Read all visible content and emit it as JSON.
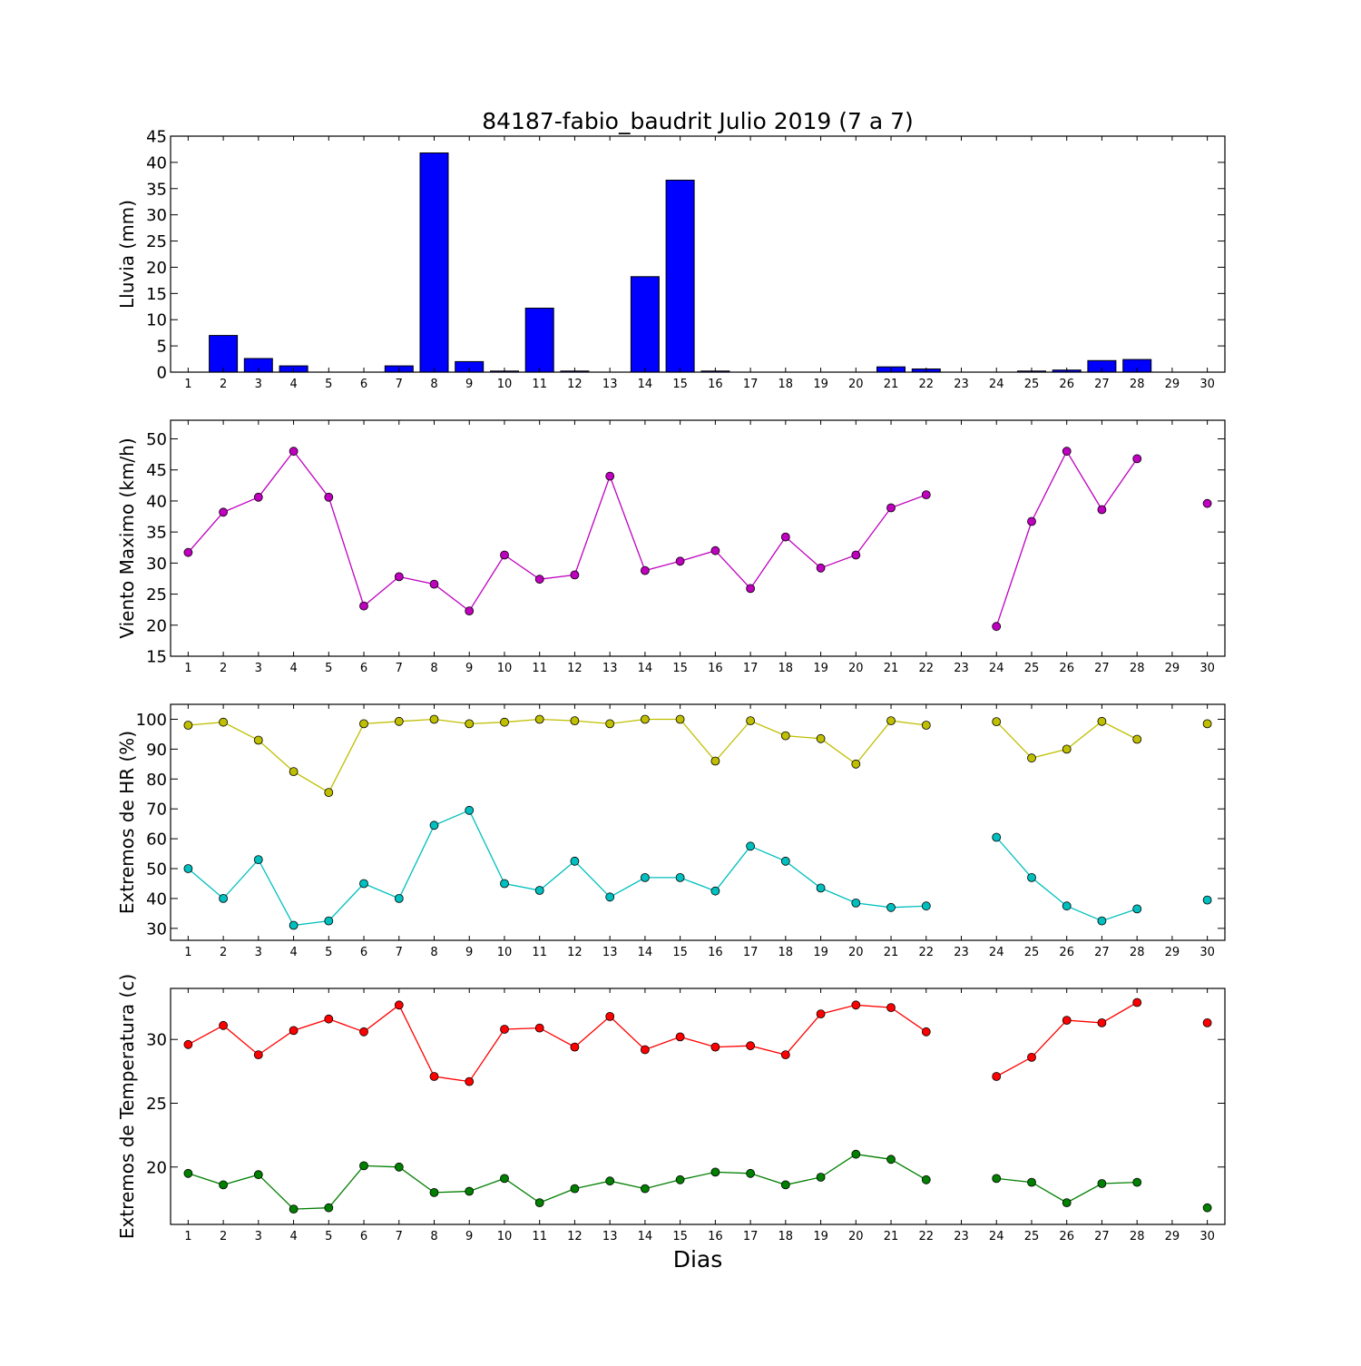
{
  "chart_data": [
    {
      "type": "bar",
      "title": "84187-fabio_baudrit Julio 2019  (7 a 7)",
      "ylabel": "Lluvia (mm)",
      "xlabel": "",
      "categories": [
        "1",
        "2",
        "3",
        "4",
        "5",
        "6",
        "7",
        "8",
        "9",
        "10",
        "11",
        "12",
        "13",
        "14",
        "15",
        "16",
        "17",
        "18",
        "19",
        "20",
        "21",
        "22",
        "23",
        "24",
        "25",
        "26",
        "27",
        "28",
        "29",
        "30"
      ],
      "values": [
        0.0,
        7.0,
        2.6,
        1.2,
        0.0,
        0.0,
        1.2,
        41.8,
        2.0,
        0.2,
        12.2,
        0.2,
        0.0,
        18.2,
        36.6,
        0.2,
        0.0,
        0.0,
        0.0,
        0.0,
        1.0,
        0.6,
        0.0,
        0.0,
        0.2,
        0.4,
        2.2,
        2.4,
        0.0,
        0.0
      ],
      "ylim": [
        0,
        45
      ],
      "yticks": [
        "0",
        "5",
        "10",
        "15",
        "20",
        "25",
        "30",
        "35",
        "40",
        "45"
      ],
      "colors": {
        "bar": "#0000ff"
      }
    },
    {
      "type": "line",
      "title": "",
      "ylabel": "Viento Maximo (km/h)",
      "xlabel": "",
      "categories": [
        "1",
        "2",
        "3",
        "4",
        "5",
        "6",
        "7",
        "8",
        "9",
        "10",
        "11",
        "12",
        "13",
        "14",
        "15",
        "16",
        "17",
        "18",
        "19",
        "20",
        "21",
        "22",
        "23",
        "24",
        "25",
        "26",
        "27",
        "28",
        "29",
        "30"
      ],
      "series": [
        {
          "values": [
            31.7,
            38.2,
            40.6,
            48.0,
            40.6,
            23.1,
            27.8,
            26.6,
            22.3,
            31.3,
            27.4,
            28.1,
            44.0,
            28.8,
            30.3,
            32.0,
            25.9,
            34.2,
            29.2,
            31.3,
            38.9,
            41.0,
            null,
            19.8,
            36.7,
            48.0,
            38.6,
            46.8,
            null,
            39.6
          ],
          "color": "#bf00bf"
        }
      ],
      "ylim": [
        15,
        53
      ],
      "yticks": [
        "15",
        "20",
        "25",
        "30",
        "35",
        "40",
        "45",
        "50"
      ]
    },
    {
      "type": "line",
      "title": "",
      "ylabel": "Extremos de HR (%)",
      "xlabel": "",
      "categories": [
        "1",
        "2",
        "3",
        "4",
        "5",
        "6",
        "7",
        "8",
        "9",
        "10",
        "11",
        "12",
        "13",
        "14",
        "15",
        "16",
        "17",
        "18",
        "19",
        "20",
        "21",
        "22",
        "23",
        "24",
        "25",
        "26",
        "27",
        "28",
        "29",
        "30"
      ],
      "series": [
        {
          "values": [
            98,
            99,
            93,
            82.5,
            75.5,
            98.5,
            99.3,
            100,
            98.5,
            99,
            100,
            99.5,
            98.5,
            100,
            100,
            86,
            99.5,
            94.5,
            93.5,
            85,
            99.5,
            98,
            null,
            99.2,
            87,
            90,
            99.3,
            93.3,
            null,
            98.5
          ],
          "color": "#bfbf00"
        },
        {
          "values": [
            50,
            40,
            53,
            31,
            32.5,
            45,
            40,
            64.5,
            69.5,
            45,
            42.7,
            52.5,
            40.5,
            47,
            47,
            42.5,
            57.5,
            52.5,
            43.5,
            38.5,
            37,
            37.5,
            null,
            60.5,
            47,
            37.5,
            32.5,
            36.5,
            null,
            39.5
          ],
          "color": "#00bfbf"
        }
      ],
      "ylim": [
        26,
        105
      ],
      "yticks": [
        "30",
        "40",
        "50",
        "60",
        "70",
        "80",
        "90",
        "100"
      ]
    },
    {
      "type": "line",
      "title": "",
      "ylabel": "Extremos de Temperatura (c)",
      "xlabel": "Dias",
      "categories": [
        "1",
        "2",
        "3",
        "4",
        "5",
        "6",
        "7",
        "8",
        "9",
        "10",
        "11",
        "12",
        "13",
        "14",
        "15",
        "16",
        "17",
        "18",
        "19",
        "20",
        "21",
        "22",
        "23",
        "24",
        "25",
        "26",
        "27",
        "28",
        "29",
        "30"
      ],
      "series": [
        {
          "values": [
            29.6,
            31.1,
            28.8,
            30.7,
            31.6,
            30.6,
            32.7,
            27.1,
            26.7,
            30.8,
            30.9,
            29.4,
            31.8,
            29.2,
            30.2,
            29.4,
            29.5,
            28.8,
            32.0,
            32.7,
            32.5,
            30.6,
            null,
            27.1,
            28.6,
            31.5,
            31.3,
            32.9,
            null,
            31.3
          ],
          "color": "#ff0000"
        },
        {
          "values": [
            19.5,
            18.6,
            19.4,
            16.7,
            16.8,
            20.1,
            20.0,
            18.0,
            18.1,
            19.1,
            17.2,
            18.3,
            18.9,
            18.3,
            19.0,
            19.6,
            19.5,
            18.6,
            19.2,
            21.0,
            20.6,
            19.0,
            null,
            19.1,
            18.8,
            17.2,
            18.7,
            18.8,
            null,
            16.8
          ],
          "color": "#007f00"
        }
      ],
      "ylim": [
        15.5,
        34
      ],
      "yticks": [
        "20",
        "25",
        "30"
      ]
    }
  ]
}
